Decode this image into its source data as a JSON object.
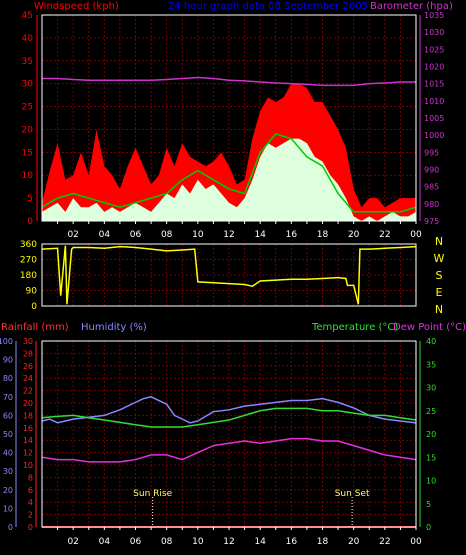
{
  "colors": {
    "background": "#000000",
    "grid": "#7a0000",
    "axis_white": "#ffffff",
    "wind_gust": "#ff0000",
    "wind_avg": "#00cc00",
    "wind_speed": "#ddffdd",
    "barometer": "#cc33cc",
    "direction": "#ffff00",
    "rain": "#ff2222",
    "humidity": "#8888ff",
    "temperature": "#33dd33",
    "dewpoint": "#dd33dd",
    "title_blue": "#0000ff"
  },
  "chart_data": [
    {
      "id": "wind-baro",
      "type": "line",
      "title": "24 hour graph data 08 September 2005",
      "left_axis": {
        "label": "Windspeed (kph)",
        "ticks": [
          0,
          5,
          10,
          15,
          20,
          25,
          30,
          35,
          40,
          45
        ],
        "ylim": [
          0,
          45
        ]
      },
      "right_axis": {
        "label": "Barometer (hpa)",
        "ticks": [
          975,
          980,
          985,
          990,
          995,
          1000,
          1005,
          1010,
          1015,
          1020,
          1025,
          1030,
          1035
        ],
        "ylim": [
          975,
          1035
        ]
      },
      "x_ticks": [
        "02",
        "04",
        "06",
        "08",
        "10",
        "12",
        "14",
        "16",
        "18",
        "20",
        "22",
        "00"
      ],
      "x_range": [
        0,
        24
      ],
      "series": [
        {
          "key": "gust",
          "kind": "gust",
          "x": [
            0,
            0.5,
            1,
            1.5,
            2,
            2.5,
            3,
            3.5,
            4,
            4.5,
            5,
            5.5,
            6,
            6.5,
            7,
            7.5,
            8,
            8.5,
            9,
            9.5,
            10,
            10.5,
            11,
            11.5,
            12,
            12.5,
            13,
            13.5,
            14,
            14.5,
            15,
            15.5,
            16,
            16.5,
            17,
            17.5,
            18,
            18.5,
            19,
            19.5,
            20,
            20.5,
            21,
            21.5,
            22,
            22.5,
            23,
            23.5,
            24
          ],
          "values": [
            4,
            11,
            17,
            9,
            10,
            15,
            10,
            20,
            12,
            10,
            7,
            12,
            16,
            12,
            8,
            10,
            16,
            12,
            17,
            14,
            13,
            12,
            13,
            15,
            12,
            8,
            9,
            18,
            24,
            27,
            26,
            27,
            30,
            30,
            29,
            26,
            26,
            23,
            20,
            16,
            7,
            3,
            5,
            5,
            3,
            4,
            5,
            5,
            5
          ]
        },
        {
          "key": "avg",
          "kind": "avg",
          "x": [
            0,
            1,
            2,
            3,
            4,
            5,
            6,
            7,
            8,
            9,
            10,
            11,
            12,
            13,
            14,
            15,
            16,
            17,
            18,
            19,
            20,
            21,
            22,
            23,
            24
          ],
          "values": [
            3,
            5,
            6,
            5,
            4,
            3,
            4,
            5,
            6,
            9,
            11,
            9,
            7,
            6,
            15,
            19,
            18,
            14,
            12,
            6,
            2,
            2,
            2,
            2,
            3
          ]
        },
        {
          "key": "speed",
          "kind": "speed",
          "x": [
            0,
            0.5,
            1,
            1.5,
            2,
            2.5,
            3,
            3.5,
            4,
            4.5,
            5,
            5.5,
            6,
            6.5,
            7,
            7.5,
            8,
            8.5,
            9,
            9.5,
            10,
            10.5,
            11,
            11.5,
            12,
            12.5,
            13,
            13.5,
            14,
            14.5,
            15,
            15.5,
            16,
            16.5,
            17,
            17.5,
            18,
            18.5,
            19,
            19.5,
            20,
            20.5,
            21,
            21.5,
            22,
            22.5,
            23,
            23.5,
            24
          ],
          "values": [
            2,
            3,
            4,
            2,
            5,
            3,
            3,
            4,
            2,
            3,
            2,
            3,
            4,
            3,
            2,
            4,
            6,
            5,
            8,
            6,
            9,
            7,
            8,
            6,
            4,
            3,
            5,
            9,
            14,
            17,
            16,
            17,
            18,
            18,
            17,
            14,
            13,
            10,
            8,
            5,
            1,
            0,
            1,
            0,
            1,
            2,
            1,
            1,
            2
          ]
        },
        {
          "key": "baro",
          "kind": "baro",
          "x": [
            0,
            1,
            2,
            3,
            4,
            5,
            6,
            7,
            8,
            9,
            10,
            11,
            12,
            13,
            14,
            15,
            16,
            17,
            18,
            19,
            20,
            21,
            22,
            23,
            24
          ],
          "values": [
            1016.5,
            1016.5,
            1016.2,
            1016,
            1016,
            1016,
            1016,
            1016,
            1016.2,
            1016.5,
            1016.8,
            1016.5,
            1016,
            1015.8,
            1015.5,
            1015.2,
            1015,
            1014.8,
            1014.5,
            1014.5,
            1014.5,
            1015,
            1015.2,
            1015.5,
            1015.5
          ]
        }
      ]
    },
    {
      "id": "direction",
      "type": "line",
      "left_axis": {
        "ticks": [
          0,
          90,
          180,
          270,
          360
        ],
        "ylim": [
          0,
          360
        ]
      },
      "right_letters": [
        "N",
        "W",
        "S",
        "E",
        "N"
      ],
      "x_range": [
        0,
        24
      ],
      "series": [
        {
          "key": "dir",
          "kind": "dir",
          "x": [
            0,
            1.0,
            1.2,
            1.5,
            1.6,
            1.9,
            2.0,
            3,
            4,
            5,
            6,
            7,
            8,
            9,
            9.8,
            10.0,
            11,
            12,
            13,
            13.5,
            14,
            15,
            16,
            17,
            18,
            19,
            19.5,
            19.6,
            20,
            20.3,
            20.4,
            21,
            22,
            23,
            24
          ],
          "values": [
            330,
            335,
            60,
            350,
            10,
            330,
            340,
            340,
            335,
            345,
            340,
            330,
            320,
            325,
            330,
            140,
            135,
            130,
            125,
            115,
            145,
            150,
            155,
            155,
            160,
            165,
            160,
            120,
            120,
            10,
            330,
            330,
            335,
            340,
            345
          ]
        }
      ]
    },
    {
      "id": "temp-hum-rain",
      "type": "line",
      "left_axis_rain": {
        "label": "Rainfall (mm)",
        "ticks": [
          0,
          2,
          4,
          6,
          8,
          10,
          12,
          14,
          16,
          18,
          20,
          22,
          24,
          26,
          28,
          30
        ],
        "ylim": [
          0,
          30
        ]
      },
      "left_axis_humidity": {
        "label": "Humidity (%)",
        "ticks": [
          0,
          10,
          20,
          30,
          40,
          50,
          60,
          70,
          80,
          90,
          100
        ],
        "ylim": [
          0,
          100
        ]
      },
      "right_axis": {
        "label": "Temperature (°C)",
        "label2": "Dew Point (°C)",
        "ticks": [
          0,
          5,
          10,
          15,
          20,
          25,
          30,
          35,
          40
        ],
        "ylim": [
          0,
          40
        ]
      },
      "x_ticks": [
        "02",
        "04",
        "06",
        "08",
        "10",
        "12",
        "14",
        "16",
        "18",
        "20",
        "22",
        "00"
      ],
      "x_range": [
        0,
        24
      ],
      "annotations": [
        {
          "text": "Sun Rise",
          "x": 7.1
        },
        {
          "text": "Sun Set",
          "x": 19.9
        }
      ],
      "series": [
        {
          "key": "rain",
          "kind": "rain",
          "x": [
            0,
            24
          ],
          "values": [
            0,
            0
          ]
        },
        {
          "key": "hum",
          "kind": "hum",
          "x": [
            0,
            0.5,
            1,
            1.5,
            2,
            3,
            4,
            5,
            6,
            6.5,
            7,
            7.5,
            8,
            8.5,
            9,
            9.5,
            10,
            11,
            12,
            13,
            14,
            15,
            16,
            17,
            18,
            19,
            20,
            21,
            22,
            23,
            24
          ],
          "values": [
            57,
            58,
            56,
            57,
            58,
            59,
            60,
            63,
            67,
            69,
            70,
            68,
            66,
            60,
            58,
            56,
            57,
            62,
            63,
            65,
            66,
            67,
            68,
            68,
            69,
            67,
            64,
            60,
            58,
            57,
            56
          ]
        },
        {
          "key": "temp",
          "kind": "temp",
          "x": [
            0,
            1,
            2,
            3,
            4,
            5,
            6,
            7,
            8,
            9,
            10,
            11,
            12,
            13,
            14,
            15,
            16,
            17,
            18,
            19,
            20,
            21,
            22,
            23,
            24
          ],
          "values": [
            23.5,
            23.8,
            24,
            23.5,
            23,
            22.5,
            22,
            21.5,
            21.5,
            21.5,
            22,
            22.5,
            23,
            24,
            25,
            25.5,
            25.5,
            25.5,
            25,
            25,
            24.5,
            24,
            24,
            23.5,
            23
          ]
        },
        {
          "key": "dew",
          "kind": "dew",
          "x": [
            0,
            1,
            2,
            3,
            4,
            5,
            6,
            7,
            8,
            9,
            10,
            11,
            12,
            13,
            14,
            15,
            16,
            17,
            18,
            19,
            20,
            21,
            22,
            23,
            24
          ],
          "values": [
            15,
            14.5,
            14.5,
            14,
            14,
            14,
            14.5,
            15.5,
            15.5,
            14.5,
            16,
            17.5,
            18,
            18.5,
            18,
            18.5,
            19,
            19,
            18.5,
            18.5,
            17.5,
            16.5,
            15.5,
            15,
            14.5
          ]
        }
      ]
    }
  ]
}
